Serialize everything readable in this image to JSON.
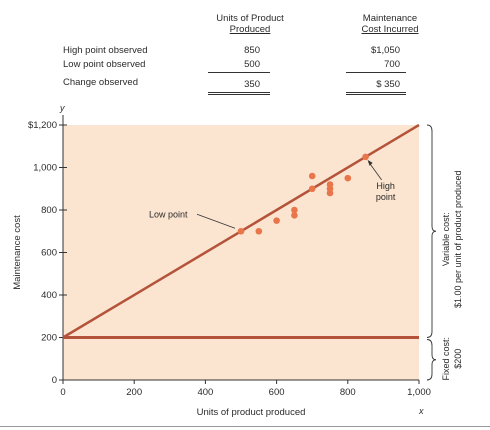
{
  "table": {
    "col1_line1": "Units of Product",
    "col1_line2": "Produced",
    "col2_line1": "Maintenance",
    "col2_line2": "Cost Incurred",
    "rows": [
      {
        "label": "High point observed",
        "units": "850",
        "cost": "$1,050"
      },
      {
        "label": "Low point observed",
        "units": "500",
        "cost": "700"
      },
      {
        "label": "Change observed",
        "units": "350",
        "cost": "$  350"
      }
    ]
  },
  "chart_data": {
    "type": "scatter",
    "xlabel": "Units of product produced",
    "ylabel": "Maintenance cost",
    "x_axis_letter": "x",
    "y_axis_letter": "y",
    "xlim": [
      0,
      1000
    ],
    "ylim": [
      0,
      1200
    ],
    "x_ticks": [
      0,
      200,
      400,
      600,
      800,
      1000
    ],
    "x_tick_labels": [
      "0",
      "200",
      "400",
      "600",
      "800",
      "1,000"
    ],
    "y_ticks": [
      0,
      200,
      400,
      600,
      800,
      1000,
      1200
    ],
    "y_tick_labels": [
      "0",
      "200",
      "400",
      "600",
      "800",
      "1,000",
      "$1,200"
    ],
    "points": [
      {
        "x": 500,
        "y": 700
      },
      {
        "x": 550,
        "y": 700
      },
      {
        "x": 600,
        "y": 750
      },
      {
        "x": 650,
        "y": 775
      },
      {
        "x": 650,
        "y": 800
      },
      {
        "x": 700,
        "y": 900
      },
      {
        "x": 700,
        "y": 960
      },
      {
        "x": 750,
        "y": 880
      },
      {
        "x": 750,
        "y": 900
      },
      {
        "x": 750,
        "y": 920
      },
      {
        "x": 800,
        "y": 950
      },
      {
        "x": 850,
        "y": 1050
      }
    ],
    "total_cost_line": {
      "intercept": 200,
      "slope": 1.0
    },
    "fixed_cost_line": {
      "value": 200
    },
    "annotations": {
      "low_point": "Low point",
      "high_point_line1": "High",
      "high_point_line2": "point",
      "variable_cost_line1": "Variable cost:",
      "variable_cost_line2": "$1.00 per unit of product produced",
      "fixed_cost_line1": "Fixed cost:",
      "fixed_cost_line2": "$200"
    },
    "colors": {
      "plot_bg": "#fbe4d0",
      "line": "#b4533a",
      "point": "#e8764a",
      "axis": "#333333"
    }
  }
}
